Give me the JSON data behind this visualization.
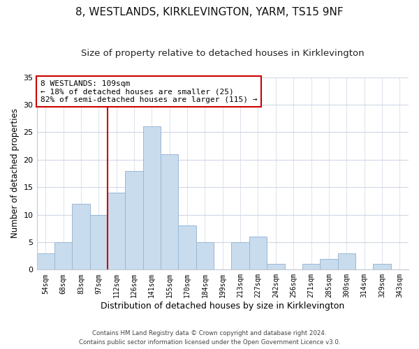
{
  "title": "8, WESTLANDS, KIRKLEVINGTON, YARM, TS15 9NF",
  "subtitle": "Size of property relative to detached houses in Kirklevington",
  "xlabel": "Distribution of detached houses by size in Kirklevington",
  "ylabel": "Number of detached properties",
  "footer_line1": "Contains HM Land Registry data © Crown copyright and database right 2024.",
  "footer_line2": "Contains public sector information licensed under the Open Government Licence v3.0.",
  "bin_labels": [
    "54sqm",
    "68sqm",
    "83sqm",
    "97sqm",
    "112sqm",
    "126sqm",
    "141sqm",
    "155sqm",
    "170sqm",
    "184sqm",
    "199sqm",
    "213sqm",
    "227sqm",
    "242sqm",
    "256sqm",
    "271sqm",
    "285sqm",
    "300sqm",
    "314sqm",
    "329sqm",
    "343sqm"
  ],
  "bar_values": [
    3,
    5,
    12,
    10,
    14,
    18,
    26,
    21,
    8,
    5,
    0,
    5,
    6,
    1,
    0,
    1,
    2,
    3,
    0,
    1,
    0
  ],
  "bar_color": "#c8dced",
  "bar_edge_color": "#9ab8d4",
  "vline_x_index": 4,
  "vline_color": "#cc0000",
  "annotation_text": "8 WESTLANDS: 109sqm\n← 18% of detached houses are smaller (25)\n82% of semi-detached houses are larger (115) →",
  "annotation_box_color": "#ffffff",
  "annotation_box_edge_color": "#cc0000",
  "ylim": [
    0,
    35
  ],
  "yticks": [
    0,
    5,
    10,
    15,
    20,
    25,
    30,
    35
  ],
  "bg_color": "#ffffff",
  "grid_color": "#d0d8e4",
  "title_fontsize": 11,
  "subtitle_fontsize": 9.5,
  "xlabel_fontsize": 9,
  "ylabel_fontsize": 8.5
}
